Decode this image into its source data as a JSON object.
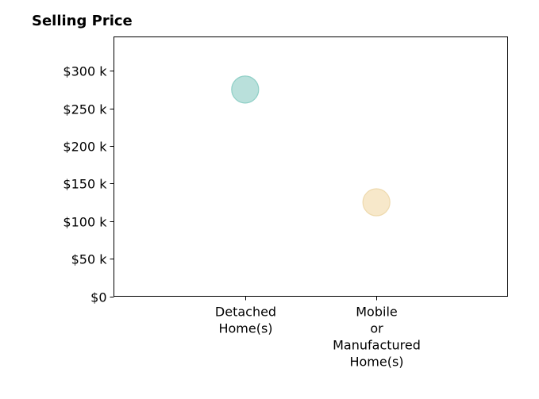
{
  "chart_data": {
    "type": "scatter",
    "title": "Selling Price",
    "xlabel": "",
    "ylabel": "",
    "categories": [
      [
        "Detached",
        "Home(s)"
      ],
      [
        "Mobile",
        "or",
        "Manufactured",
        "Home(s)"
      ]
    ],
    "values": [
      275000,
      125000
    ],
    "point_colors": [
      "#a8d8d2",
      "#f5e2bd"
    ],
    "point_border_colors": [
      "#8ecfc6",
      "#eed9ad"
    ],
    "ylim": [
      0,
      345000
    ],
    "yticks": [
      {
        "value": 0,
        "label": "$0"
      },
      {
        "value": 50000,
        "label": "$50 k"
      },
      {
        "value": 100000,
        "label": "$100 k"
      },
      {
        "value": 150000,
        "label": "$150 k"
      },
      {
        "value": 200000,
        "label": "$200 k"
      },
      {
        "value": 250000,
        "label": "$250 k"
      },
      {
        "value": 300000,
        "label": "$300 k"
      }
    ],
    "grid": false,
    "legend": "none"
  }
}
